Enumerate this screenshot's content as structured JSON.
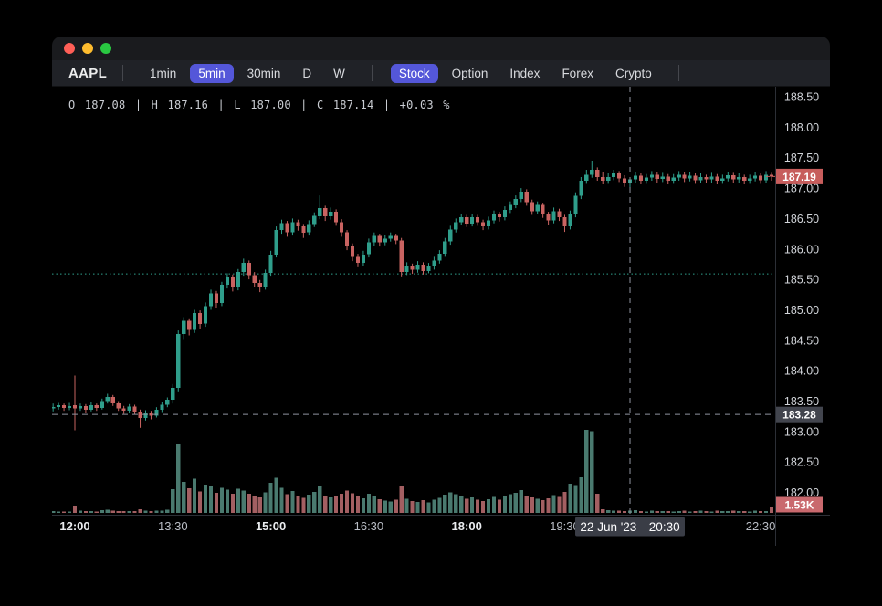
{
  "window": {
    "traffic_lights": {
      "close": "#ff5f57",
      "minimize": "#febc2e",
      "zoom": "#29c841"
    }
  },
  "toolbar": {
    "symbol": "AAPL",
    "accent": "#5457d9",
    "timeframes": [
      {
        "label": "1min",
        "active": false
      },
      {
        "label": "5min",
        "active": true
      },
      {
        "label": "30min",
        "active": false
      },
      {
        "label": "D",
        "active": false
      },
      {
        "label": "W",
        "active": false
      }
    ],
    "markets": [
      {
        "label": "Stock",
        "active": true
      },
      {
        "label": "Option",
        "active": false
      },
      {
        "label": "Index",
        "active": false
      },
      {
        "label": "Forex",
        "active": false
      },
      {
        "label": "Crypto",
        "active": false
      }
    ]
  },
  "chart_data": {
    "type": "candlestick",
    "symbol": "AAPL",
    "interval": "5min",
    "legend_text": "O 187.08 | H 187.16 | L 187.00 | C 187.14 | +0.03 %",
    "legend": {
      "open": "187.08",
      "high": "187.16",
      "low": "187.00",
      "close": "187.14",
      "change_pct": "+0.03 %"
    },
    "start_time": "11:40",
    "step_minutes": 5,
    "price_axis": {
      "top_value": 188.5,
      "step": 0.5,
      "labels": [
        "188.50",
        "188.00",
        "187.50",
        "187.00",
        "186.50",
        "186.00",
        "185.50",
        "185.00",
        "184.50",
        "184.00",
        "183.50",
        "183.00",
        "182.50",
        "182.00"
      ]
    },
    "time_ticks": [
      {
        "label": "12:00",
        "idx": 4,
        "bold": true
      },
      {
        "label": "13:30",
        "idx": 22,
        "bold": false
      },
      {
        "label": "15:00",
        "idx": 40,
        "bold": true
      },
      {
        "label": "16:30",
        "idx": 58,
        "bold": false
      },
      {
        "label": "18:00",
        "idx": 76,
        "bold": true
      },
      {
        "label": "19:30",
        "idx": 94,
        "bold": false
      },
      {
        "label": "22:30",
        "idx": 130,
        "bold": false
      }
    ],
    "last_price_label": {
      "text": "187.19",
      "price": 187.19,
      "bg": "#c75d5c"
    },
    "crosshair": {
      "idx": 106,
      "price": 183.28,
      "price_label": "183.28",
      "price_label_bg": "#42454e",
      "date_label": "22 Jun '23",
      "time_label": "20:30",
      "label_bg": "#3a3d46",
      "line_color": "#9094a0"
    },
    "price_line": {
      "price": 185.59,
      "color": "#2f9e8b",
      "style": "dotted"
    },
    "volume_label": {
      "text": "1.53K",
      "bg": "#c9696e"
    },
    "colors": {
      "up": "#2f9e8b",
      "down": "#c96361",
      "vol_up": "#4a7a6f",
      "vol_down": "#a35f62",
      "axis_text": "#d2d5da",
      "axis_text_dim": "#b9bdc5",
      "axis_text_bold": "#eaecef",
      "axis_border": "#2c2f36"
    },
    "candles": [
      [
        183.38,
        183.46,
        183.33,
        183.4
      ],
      [
        183.4,
        183.47,
        183.36,
        183.43
      ],
      [
        183.43,
        183.46,
        183.34,
        183.39
      ],
      [
        183.39,
        183.47,
        183.35,
        183.42
      ],
      [
        183.43,
        183.92,
        183.02,
        183.38
      ],
      [
        183.38,
        183.46,
        183.34,
        183.42
      ],
      [
        183.42,
        183.45,
        183.31,
        183.36
      ],
      [
        183.36,
        183.48,
        183.33,
        183.43
      ],
      [
        183.43,
        183.46,
        183.34,
        183.39
      ],
      [
        183.39,
        183.54,
        183.36,
        183.5
      ],
      [
        183.5,
        183.62,
        183.46,
        183.57
      ],
      [
        183.57,
        183.6,
        183.42,
        183.46
      ],
      [
        183.46,
        183.5,
        183.34,
        183.38
      ],
      [
        183.38,
        183.42,
        183.29,
        183.34
      ],
      [
        183.34,
        183.45,
        183.31,
        183.41
      ],
      [
        183.41,
        183.44,
        183.28,
        183.33
      ],
      [
        183.33,
        183.36,
        183.06,
        183.22
      ],
      [
        183.22,
        183.35,
        183.18,
        183.31
      ],
      [
        183.31,
        183.34,
        183.2,
        183.26
      ],
      [
        183.26,
        183.4,
        183.23,
        183.36
      ],
      [
        183.36,
        183.48,
        183.32,
        183.44
      ],
      [
        183.44,
        183.56,
        183.4,
        183.52
      ],
      [
        183.52,
        183.78,
        183.46,
        183.72
      ],
      [
        183.72,
        184.66,
        183.66,
        184.6
      ],
      [
        184.6,
        184.88,
        184.52,
        184.82
      ],
      [
        184.82,
        184.86,
        184.58,
        184.67
      ],
      [
        184.67,
        185.0,
        184.62,
        184.95
      ],
      [
        184.95,
        184.99,
        184.68,
        184.77
      ],
      [
        184.77,
        185.12,
        184.72,
        185.06
      ],
      [
        185.06,
        185.33,
        185.0,
        185.27
      ],
      [
        185.27,
        185.31,
        185.03,
        185.11
      ],
      [
        185.11,
        185.46,
        185.06,
        185.41
      ],
      [
        185.41,
        185.6,
        185.35,
        185.54
      ],
      [
        185.54,
        185.58,
        185.3,
        185.37
      ],
      [
        185.37,
        185.67,
        185.32,
        185.62
      ],
      [
        185.62,
        185.84,
        185.56,
        185.77
      ],
      [
        185.77,
        185.81,
        185.5,
        185.57
      ],
      [
        185.57,
        185.62,
        185.37,
        185.44
      ],
      [
        185.44,
        185.49,
        185.29,
        185.37
      ],
      [
        185.37,
        185.66,
        185.33,
        185.61
      ],
      [
        185.61,
        185.97,
        185.56,
        185.91
      ],
      [
        185.91,
        186.37,
        185.86,
        186.31
      ],
      [
        186.31,
        186.48,
        186.25,
        186.42
      ],
      [
        186.42,
        186.46,
        186.2,
        186.27
      ],
      [
        186.27,
        186.5,
        186.22,
        186.44
      ],
      [
        186.44,
        186.48,
        186.3,
        186.37
      ],
      [
        186.37,
        186.41,
        186.18,
        186.27
      ],
      [
        186.27,
        186.47,
        186.22,
        186.41
      ],
      [
        186.41,
        186.6,
        186.36,
        186.54
      ],
      [
        186.54,
        186.88,
        186.49,
        186.67
      ],
      [
        186.67,
        186.71,
        186.46,
        186.54
      ],
      [
        186.54,
        186.68,
        186.48,
        186.61
      ],
      [
        186.61,
        186.65,
        186.38,
        186.44
      ],
      [
        186.44,
        186.49,
        186.2,
        186.27
      ],
      [
        186.27,
        186.31,
        185.98,
        186.04
      ],
      [
        186.04,
        186.09,
        185.8,
        185.87
      ],
      [
        185.87,
        185.92,
        185.7,
        185.77
      ],
      [
        185.77,
        185.97,
        185.72,
        185.91
      ],
      [
        185.91,
        186.17,
        185.86,
        186.11
      ],
      [
        186.11,
        186.27,
        186.05,
        186.21
      ],
      [
        186.21,
        186.25,
        186.04,
        186.11
      ],
      [
        186.11,
        186.23,
        186.06,
        186.17
      ],
      [
        186.17,
        186.27,
        186.12,
        186.21
      ],
      [
        186.21,
        186.25,
        186.08,
        186.14
      ],
      [
        186.14,
        186.18,
        185.55,
        185.62
      ],
      [
        185.62,
        185.78,
        185.57,
        185.72
      ],
      [
        185.72,
        185.76,
        185.59,
        185.66
      ],
      [
        185.66,
        185.8,
        185.61,
        185.74
      ],
      [
        185.74,
        185.78,
        185.58,
        185.64
      ],
      [
        185.64,
        185.77,
        185.6,
        185.71
      ],
      [
        185.71,
        185.87,
        185.66,
        185.81
      ],
      [
        185.81,
        185.98,
        185.76,
        185.92
      ],
      [
        185.92,
        186.18,
        185.87,
        186.12
      ],
      [
        186.12,
        186.38,
        186.07,
        186.32
      ],
      [
        186.32,
        186.5,
        186.27,
        186.44
      ],
      [
        186.44,
        186.58,
        186.39,
        186.52
      ],
      [
        186.52,
        186.56,
        186.36,
        186.42
      ],
      [
        186.42,
        186.58,
        186.37,
        186.52
      ],
      [
        186.52,
        186.56,
        186.38,
        186.44
      ],
      [
        186.44,
        186.48,
        186.31,
        186.37
      ],
      [
        186.37,
        186.53,
        186.32,
        186.47
      ],
      [
        186.47,
        186.63,
        186.42,
        186.57
      ],
      [
        186.57,
        186.61,
        186.45,
        186.52
      ],
      [
        186.52,
        186.7,
        186.47,
        186.64
      ],
      [
        186.64,
        186.78,
        186.59,
        186.72
      ],
      [
        186.72,
        186.88,
        186.67,
        186.82
      ],
      [
        186.82,
        187.0,
        186.77,
        186.94
      ],
      [
        186.94,
        186.98,
        186.71,
        186.77
      ],
      [
        186.77,
        186.81,
        186.56,
        186.62
      ],
      [
        186.62,
        186.78,
        186.57,
        186.72
      ],
      [
        186.72,
        186.76,
        186.51,
        186.57
      ],
      [
        186.57,
        186.61,
        186.4,
        186.47
      ],
      [
        186.47,
        186.68,
        186.42,
        186.62
      ],
      [
        186.62,
        186.66,
        186.46,
        186.52
      ],
      [
        186.52,
        186.56,
        186.28,
        186.37
      ],
      [
        186.37,
        186.63,
        186.32,
        186.57
      ],
      [
        186.57,
        186.93,
        186.52,
        186.87
      ],
      [
        186.87,
        187.18,
        186.82,
        187.12
      ],
      [
        187.12,
        187.3,
        187.07,
        187.22
      ],
      [
        187.22,
        187.45,
        187.17,
        187.3
      ],
      [
        187.3,
        187.34,
        187.12,
        187.18
      ],
      [
        187.18,
        187.26,
        187.06,
        187.12
      ],
      [
        187.12,
        187.24,
        187.07,
        187.18
      ],
      [
        187.18,
        187.3,
        187.13,
        187.24
      ],
      [
        187.24,
        187.28,
        187.1,
        187.16
      ],
      [
        187.16,
        187.21,
        187.02,
        187.08
      ],
      [
        187.08,
        187.16,
        187.0,
        187.14
      ],
      [
        187.14,
        187.26,
        187.09,
        187.2
      ],
      [
        187.2,
        187.24,
        187.06,
        187.12
      ],
      [
        187.12,
        187.23,
        187.07,
        187.17
      ],
      [
        187.17,
        187.28,
        187.12,
        187.22
      ],
      [
        187.22,
        187.26,
        187.09,
        187.15
      ],
      [
        187.15,
        187.25,
        187.1,
        187.19
      ],
      [
        187.19,
        187.23,
        187.06,
        187.12
      ],
      [
        187.12,
        187.23,
        187.07,
        187.17
      ],
      [
        187.17,
        187.28,
        187.12,
        187.22
      ],
      [
        187.22,
        187.26,
        187.1,
        187.16
      ],
      [
        187.16,
        187.26,
        187.11,
        187.2
      ],
      [
        187.2,
        187.24,
        187.07,
        187.13
      ],
      [
        187.13,
        187.24,
        187.08,
        187.18
      ],
      [
        187.18,
        187.22,
        187.08,
        187.14
      ],
      [
        187.14,
        187.25,
        187.09,
        187.19
      ],
      [
        187.19,
        187.23,
        187.06,
        187.12
      ],
      [
        187.12,
        187.22,
        187.07,
        187.16
      ],
      [
        187.16,
        187.27,
        187.11,
        187.21
      ],
      [
        187.21,
        187.25,
        187.08,
        187.14
      ],
      [
        187.14,
        187.24,
        187.09,
        187.18
      ],
      [
        187.18,
        187.22,
        187.06,
        187.12
      ],
      [
        187.12,
        187.22,
        187.07,
        187.16
      ],
      [
        187.16,
        187.26,
        187.11,
        187.2
      ],
      [
        187.2,
        187.24,
        187.07,
        187.13
      ],
      [
        187.13,
        187.28,
        187.08,
        187.22
      ],
      [
        187.22,
        187.25,
        187.12,
        187.19
      ]
    ],
    "volumes": [
      420,
      380,
      350,
      400,
      1900,
      520,
      460,
      430,
      390,
      650,
      780,
      560,
      480,
      420,
      510,
      460,
      920,
      540,
      470,
      520,
      610,
      760,
      6000,
      17500,
      7800,
      6200,
      8600,
      5400,
      7200,
      6800,
      5100,
      6400,
      5900,
      4800,
      6100,
      5600,
      4900,
      4300,
      3900,
      5200,
      7600,
      8900,
      6300,
      4700,
      5500,
      4200,
      3800,
      4600,
      5300,
      6700,
      4400,
      3900,
      4100,
      4800,
      5600,
      5000,
      4200,
      3700,
      4900,
      4300,
      3500,
      3100,
      2900,
      3300,
      6800,
      3600,
      3000,
      2800,
      3200,
      2700,
      3400,
      3800,
      4600,
      5200,
      4700,
      4100,
      3600,
      3900,
      3300,
      3000,
      3500,
      4000,
      3400,
      4300,
      4700,
      5100,
      5800,
      4400,
      3900,
      3600,
      3200,
      3700,
      4500,
      4000,
      5300,
      7400,
      7000,
      9000,
      21000,
      20700,
      4800,
      900,
      700,
      550,
      600,
      480,
      520,
      650,
      430,
      380,
      560,
      470,
      420,
      510,
      390,
      450,
      610,
      380,
      430,
      520,
      460,
      400,
      550,
      480,
      420,
      590,
      510,
      440,
      380,
      560,
      490,
      430,
      1530
    ]
  }
}
